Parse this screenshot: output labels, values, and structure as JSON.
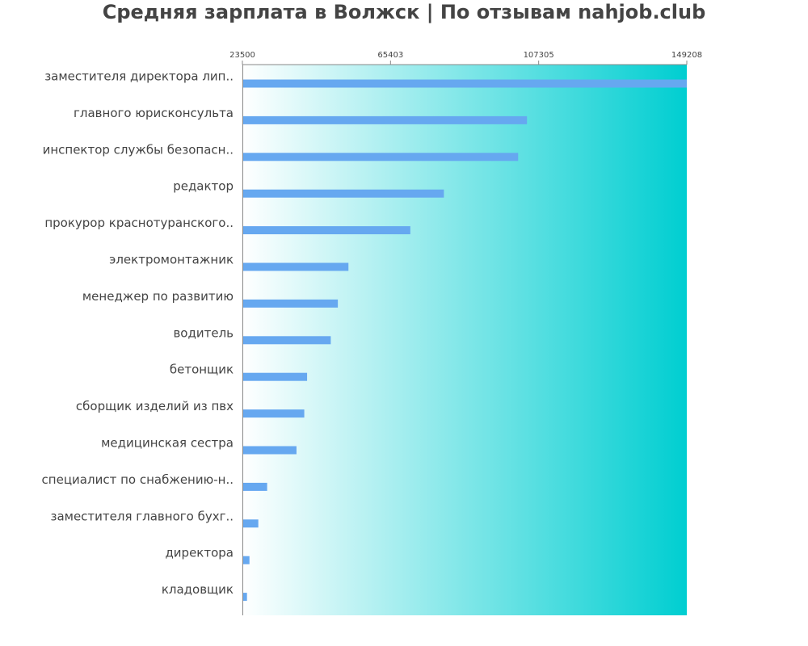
{
  "title": "Средняя зарплата в Волжск | По отзывам nahjob.club",
  "chart_data": {
    "type": "bar",
    "orientation": "horizontal",
    "title": "Средняя зарплата в Волжск | По отзывам nahjob.club",
    "xlabel": "",
    "ylabel": "",
    "xlim": [
      23500,
      149208
    ],
    "xticks": [
      "23500",
      "65403",
      "107305",
      "149208"
    ],
    "grid": false,
    "legend": "none",
    "colors": {
      "bar": "#66a8f0",
      "background_start": "#ffffff",
      "background_end": "#00ced1",
      "axis": "#888888",
      "text": "#444444"
    },
    "categories": [
      "заместителя директора лип..",
      "главного юрисконсульта",
      "инспектор службы безопасн..",
      "редактор",
      "прокурор краснотуранского..",
      "электромонтажник",
      "менеджер по развитию",
      "водитель",
      "бетонщик",
      "сборщик изделий из пвх",
      "медицинская сестра",
      "специалист по снабжению-н..",
      "заместителя главного бухг..",
      "директора",
      "кладовщик"
    ],
    "values": [
      149208,
      104000,
      101500,
      80500,
      71000,
      53500,
      50500,
      48500,
      41800,
      41000,
      38800,
      30500,
      28000,
      25500,
      24800
    ]
  }
}
